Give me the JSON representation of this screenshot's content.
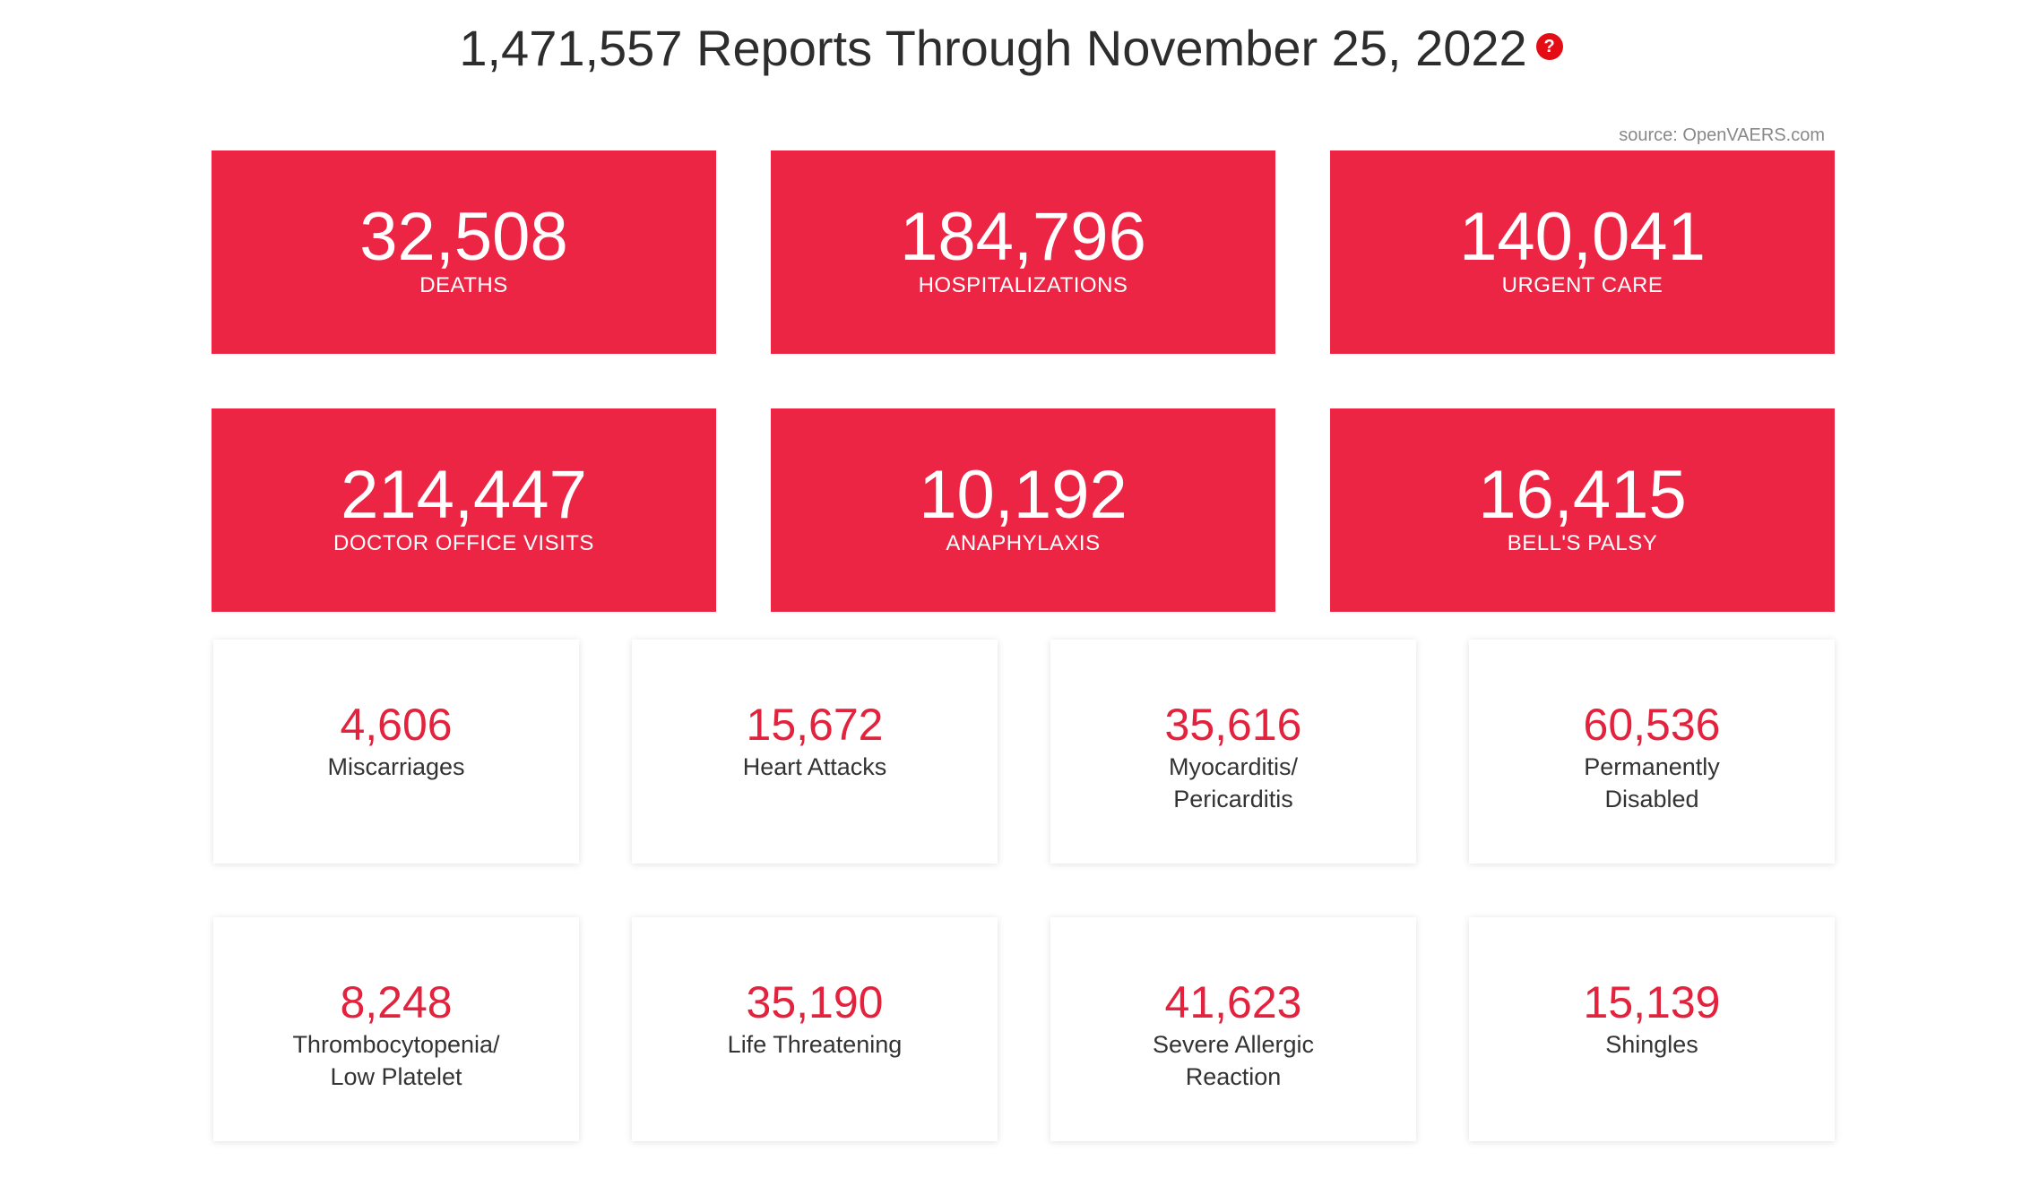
{
  "header": {
    "title": "1,471,557 Reports Through November 25, 2022",
    "help_icon": "?"
  },
  "source": "source: OpenVAERS.com",
  "primary_stats": [
    {
      "value": "32,508",
      "label": "DEATHS"
    },
    {
      "value": "184,796",
      "label": "HOSPITALIZATIONS"
    },
    {
      "value": "140,041",
      "label": "URGENT CARE"
    },
    {
      "value": "214,447",
      "label": "DOCTOR OFFICE VISITS"
    },
    {
      "value": "10,192",
      "label": "ANAPHYLAXIS"
    },
    {
      "value": "16,415",
      "label": "BELL'S PALSY"
    }
  ],
  "secondary_stats": [
    {
      "value": "4,606",
      "label_line1": "Miscarriages",
      "label_line2": ""
    },
    {
      "value": "15,672",
      "label_line1": "Heart Attacks",
      "label_line2": ""
    },
    {
      "value": "35,616",
      "label_line1": "Myocarditis/",
      "label_line2": "Pericarditis"
    },
    {
      "value": "60,536",
      "label_line1": "Permanently",
      "label_line2": "Disabled"
    },
    {
      "value": "8,248",
      "label_line1": "Thrombocytopenia/",
      "label_line2": "Low Platelet"
    },
    {
      "value": "35,190",
      "label_line1": "Life Threatening",
      "label_line2": ""
    },
    {
      "value": "41,623",
      "label_line1": "Severe Allergic",
      "label_line2": "Reaction"
    },
    {
      "value": "15,139",
      "label_line1": "Shingles",
      "label_line2": ""
    }
  ],
  "colors": {
    "accent": "#ec2545",
    "number_red": "#e3223d",
    "help_icon": "#e40d15"
  },
  "icons": {
    "help": "help-circle-icon"
  }
}
